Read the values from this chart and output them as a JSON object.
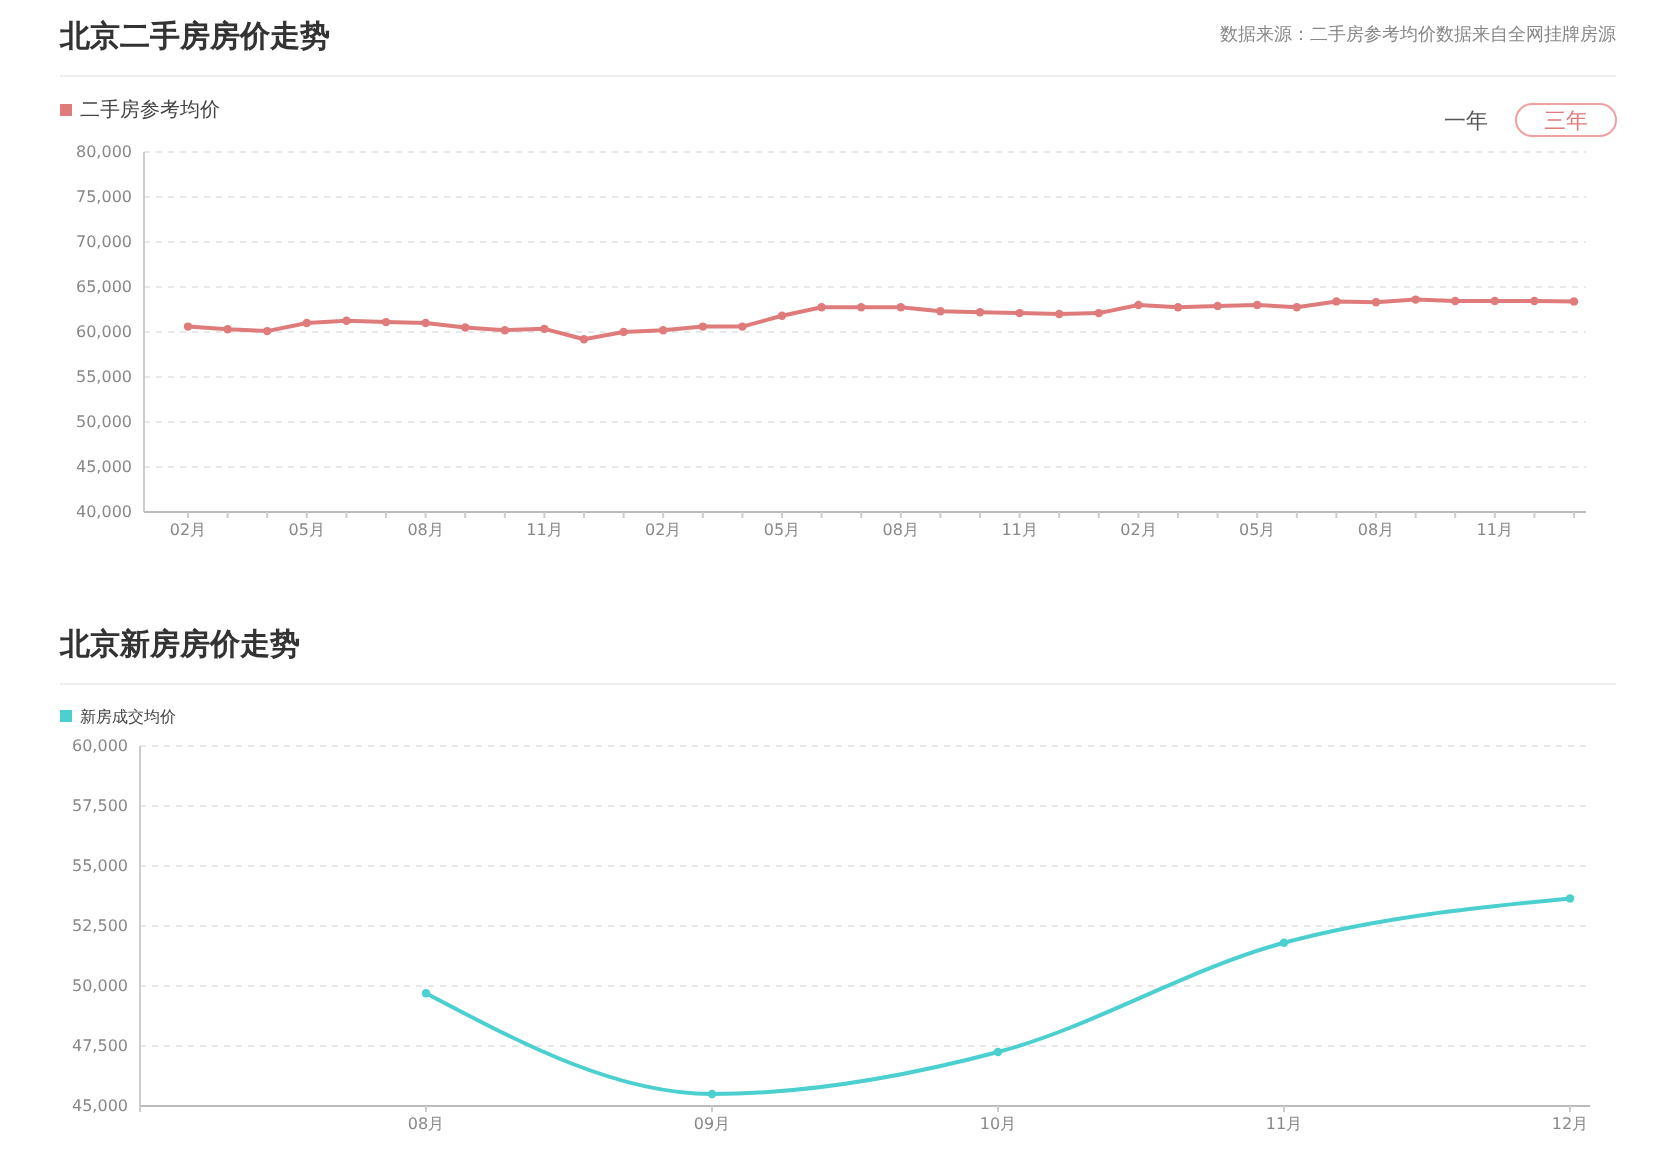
{
  "chart_data": [
    {
      "type": "line",
      "title": "北京二手房房价走势",
      "annotations": [
        "数据来源：二手房参考均价数据来自全网挂牌房源",
        "一年",
        "三年"
      ],
      "categories": [
        "02月",
        null,
        null,
        "05月",
        null,
        null,
        "08月",
        null,
        null,
        "11月",
        null,
        null,
        "02月",
        null,
        null,
        "05月",
        null,
        null,
        "08月",
        null,
        null,
        "11月",
        null,
        null,
        "02月",
        null,
        null,
        "05月",
        null,
        null,
        "08月",
        null,
        null,
        "11月",
        null,
        null
      ],
      "series": [
        {
          "name": "二手房参考均价",
          "color": "#e07b7b",
          "values": [
            60600,
            60300,
            60100,
            61000,
            61250,
            61100,
            61000,
            60500,
            60200,
            60350,
            59200,
            60000,
            60200,
            60600,
            60600,
            61800,
            62750,
            62750,
            62750,
            62300,
            62200,
            62100,
            62000,
            62100,
            63000,
            62750,
            62900,
            63000,
            62750,
            63400,
            63300,
            63600,
            63450,
            63450,
            63450,
            63400
          ]
        }
      ],
      "ylim": [
        40000,
        80000
      ],
      "yticks": [
        {
          "value": 40000,
          "label": "40,000"
        },
        {
          "value": 45000,
          "label": "45,000"
        },
        {
          "value": 50000,
          "label": "50,000"
        },
        {
          "value": 55000,
          "label": "55,000"
        },
        {
          "value": 60000,
          "label": "60,000"
        },
        {
          "value": 65000,
          "label": "65,000"
        },
        {
          "value": 70000,
          "label": "70,000"
        },
        {
          "value": 75000,
          "label": "75,000"
        },
        {
          "value": 80000,
          "label": "80,000"
        }
      ],
      "grid": "y",
      "legend": "top left",
      "marker": "circle",
      "line_style": "solid"
    },
    {
      "type": "line",
      "title": "北京新房房价走势",
      "categories": [
        null,
        "08月",
        "09月",
        "10月",
        "11月",
        "12月"
      ],
      "series": [
        {
          "name": "新房成交均价",
          "color": "#4ccfcf",
          "values": [
            null,
            49700,
            45500,
            47250,
            51800,
            53650
          ]
        }
      ],
      "ylim": [
        45000,
        60000
      ],
      "yticks": [
        {
          "value": 45000,
          "label": "45,000"
        },
        {
          "value": 47500,
          "label": "47,500"
        },
        {
          "value": 50000,
          "label": "50,000"
        },
        {
          "value": 52500,
          "label": "52,500"
        },
        {
          "value": 55000,
          "label": "55,000"
        },
        {
          "value": 57500,
          "label": "57,500"
        },
        {
          "value": 60000,
          "label": "60,000"
        }
      ],
      "grid": "y",
      "legend": "top left",
      "marker": "circle",
      "line_style": "solid"
    }
  ]
}
